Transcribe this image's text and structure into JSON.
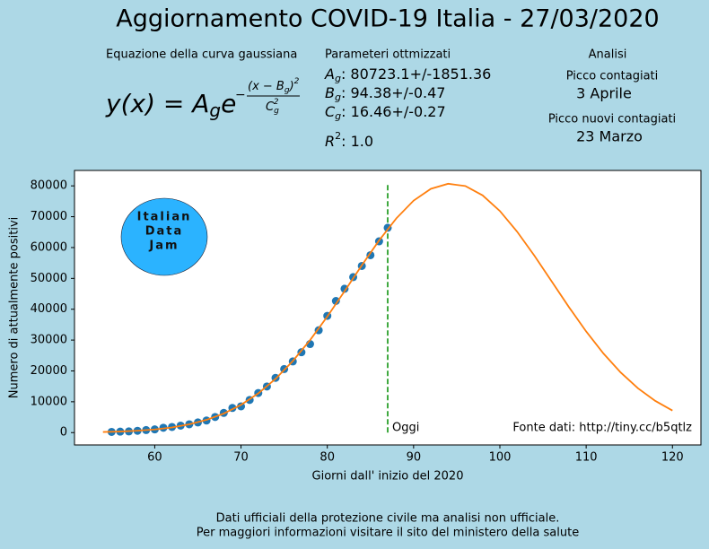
{
  "chart_data": {
    "type": "scatter",
    "title": "Aggiornamento COVID-19 Italia - 27/03/2020",
    "equation_label": "Equazione della curva gaussiana",
    "equation": {
      "lhs": "y(x) = A",
      "lhs_sub": "g",
      "base": "e",
      "sign": "−",
      "num": "(x − B",
      "num_sub": "g",
      "num_end": ")",
      "num_sup": "2",
      "den": "C",
      "den_sub": "g",
      "den_sup": "2"
    },
    "params_label": "Parameteri ottmizzati",
    "params": [
      {
        "symbol": "A",
        "sub": "g",
        "value": ": 80723.1+/-1851.36"
      },
      {
        "symbol": "B",
        "sub": "g",
        "value": ": 94.38+/-0.47"
      },
      {
        "symbol": "C",
        "sub": "g",
        "value": ": 16.46+/-0.27"
      }
    ],
    "r2": {
      "symbol": "R",
      "sup": "2",
      "value": ": 1.0"
    },
    "analysis_label": "Analisi",
    "analysis": [
      {
        "label": "Picco contagiati",
        "value": "3 Aprile"
      },
      {
        "label": "Picco nuovi contagiati",
        "value": "23 Marzo"
      }
    ],
    "xlabel": "Giorni dall' inizio del 2020",
    "ylabel": "Numero di attualmente positivi",
    "xlim": [
      50.7,
      123.3
    ],
    "ylim": [
      -4000,
      85000
    ],
    "xticks": [
      60,
      70,
      80,
      90,
      100,
      110,
      120
    ],
    "yticks": [
      0,
      10000,
      20000,
      30000,
      40000,
      50000,
      60000,
      70000,
      80000
    ],
    "grid": false,
    "series": [
      {
        "kind": "scatter",
        "color": "#1f77b4",
        "x": [
          55,
          56,
          57,
          58,
          59,
          60,
          61,
          62,
          63,
          64,
          65,
          66,
          67,
          68,
          69,
          70,
          71,
          72,
          73,
          74,
          75,
          76,
          77,
          78,
          79,
          80,
          81,
          82,
          83,
          84,
          85,
          86,
          87
        ],
        "values": [
          221,
          311,
          385,
          588,
          821,
          1049,
          1577,
          1835,
          2263,
          2706,
          3296,
          3916,
          5061,
          6387,
          7985,
          8514,
          10590,
          12839,
          14955,
          17750,
          20603,
          23073,
          26062,
          28710,
          33190,
          37860,
          42681,
          46638,
          50418,
          54030,
          57521,
          62013,
          66414
        ]
      },
      {
        "kind": "line",
        "color": "#ff7f0e",
        "x": [
          54,
          56,
          58,
          60,
          62,
          64,
          66,
          68,
          70,
          72,
          74,
          76,
          78,
          80,
          82,
          84,
          86,
          88,
          90,
          92,
          94,
          96,
          98,
          100,
          102,
          104,
          106,
          108,
          110,
          112,
          114,
          116,
          118,
          120
        ],
        "values": [
          197,
          352,
          610,
          1029,
          1684,
          2678,
          4131,
          6184,
          9000,
          12706,
          17428,
          23200,
          29989,
          37633,
          45843,
          54238,
          62294,
          69463,
          75210,
          79053,
          80680,
          79946,
          76913,
          71844,
          65152,
          57362,
          49039,
          40701,
          32798,
          25662,
          19495,
          14385,
          10300,
          7152
        ]
      }
    ],
    "today": {
      "x": 87,
      "ymax": 80723.1,
      "label": "Oggi",
      "color": "#2ca02c"
    },
    "source": "Fonte dati: http://tiny.cc/b5qtlz",
    "logo": [
      "Italian",
      "Data",
      "Jam"
    ],
    "footer": [
      "Dati ufficiali della protezione civile ma analisi non ufficiale.",
      "Per maggiori informazioni visitare il sito del ministero della salute"
    ]
  }
}
